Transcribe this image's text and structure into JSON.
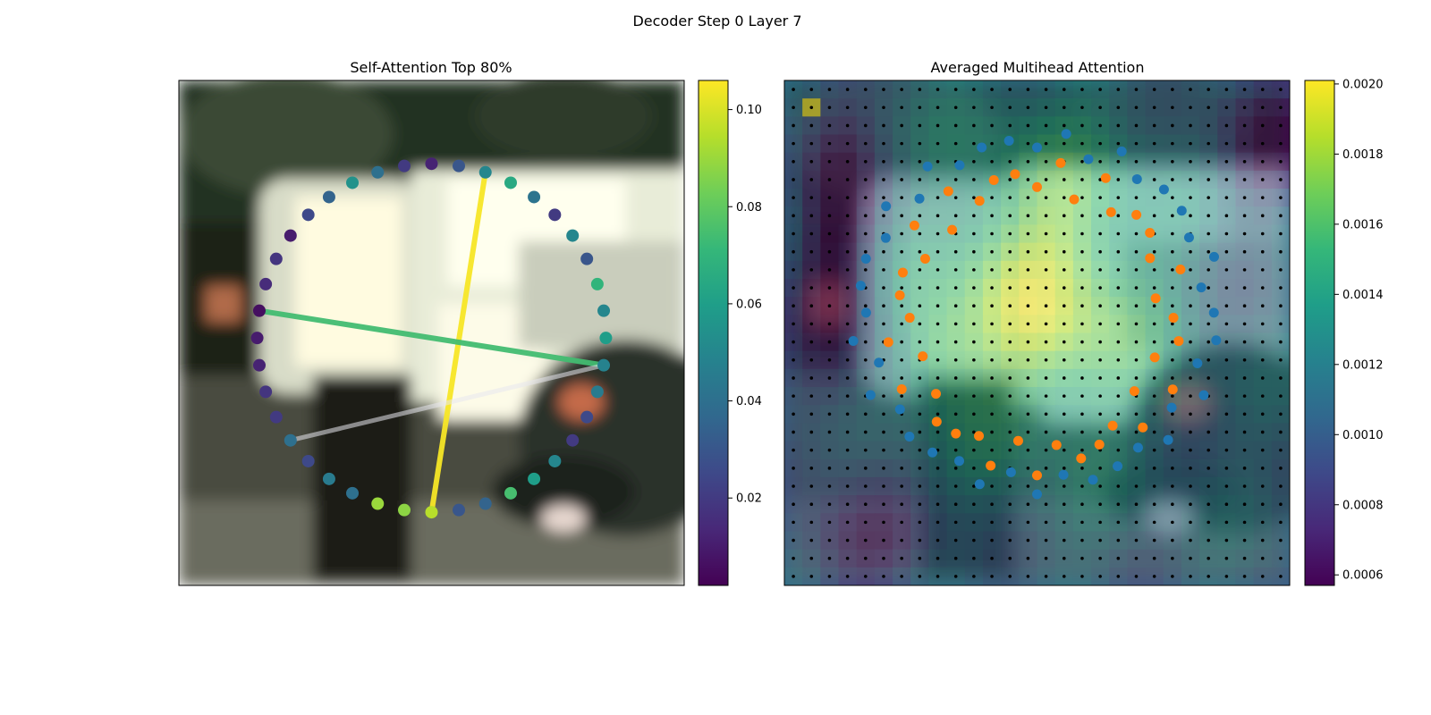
{
  "figure": {
    "suptitle": "Decoder Step 0 Layer 7"
  },
  "colors": {
    "viridis": [
      "#440154",
      "#482878",
      "#3e4989",
      "#31688e",
      "#26828e",
      "#1f9e89",
      "#35b779",
      "#6ece58",
      "#b5de2b",
      "#fde725"
    ],
    "line_gray": "#e8e8ee",
    "point_blue": "#1f77b4",
    "point_orange": "#ff7f0e",
    "grid_dot": "#000000"
  },
  "chart_data": [
    {
      "type": "scatter",
      "title": "Self-Attention Top 80%",
      "background": "blurred street photo (white truck, parked car, pedestrian)",
      "xlim": [
        0,
        1
      ],
      "ylim": [
        0,
        1
      ],
      "points": {
        "count": 40,
        "center": [
          0.5,
          0.49
        ],
        "radius": 0.345,
        "values": [
          0.095,
          0.088,
          0.09,
          0.04,
          0.045,
          0.025,
          0.04,
          0.02,
          0.018,
          0.012,
          0.01,
          0.006,
          0.015,
          0.018,
          0.01,
          0.025,
          0.035,
          0.055,
          0.04,
          0.02,
          0.012,
          0.03,
          0.05,
          0.065,
          0.042,
          0.02,
          0.05,
          0.03,
          0.07,
          0.05,
          0.06,
          0.048,
          0.045,
          0.025,
          0.02,
          0.05,
          0.06,
          0.075,
          0.035,
          0.03
        ]
      },
      "links": [
        {
          "from": 0,
          "to": 22,
          "value": 0.105
        },
        {
          "from": 11,
          "to": 31,
          "value": 0.074
        },
        {
          "from": 31,
          "to": 6,
          "value": 0.0,
          "faint": true
        }
      ],
      "colorbar": {
        "ticks": [
          0.02,
          0.04,
          0.06,
          0.08,
          0.1
        ],
        "tick_labels": [
          "0.02",
          "0.04",
          "0.06",
          "0.08",
          "0.10"
        ],
        "range": [
          0.002,
          0.106
        ],
        "cmap": "viridis"
      }
    },
    {
      "type": "heatmap",
      "title": "Averaged Multihead Attention",
      "grid": {
        "rows": 28,
        "cols": 28
      },
      "value_range": [
        0.00057,
        0.00201
      ],
      "overlay": "blurred street photo",
      "series": [
        {
          "name": "reference points",
          "color": "#1f77b4",
          "shape": "ellipse",
          "count": 40,
          "center": [
            0.5,
            0.46
          ],
          "radius": [
            0.35,
            0.34
          ]
        },
        {
          "name": "sampled offsets",
          "color": "#ff7f0e",
          "shape": "ellipse",
          "count": 40,
          "center": [
            0.5,
            0.47
          ],
          "radius": [
            0.27,
            0.28
          ]
        }
      ],
      "colorbar": {
        "ticks": [
          0.0006,
          0.0008,
          0.001,
          0.0012,
          0.0014,
          0.0016,
          0.0018,
          0.002
        ],
        "tick_labels": [
          "0.0006",
          "0.0008",
          "0.0010",
          "0.0012",
          "0.0014",
          "0.0016",
          "0.0018",
          "0.0020"
        ],
        "range": [
          0.00057,
          0.00201
        ],
        "cmap": "viridis"
      }
    }
  ]
}
